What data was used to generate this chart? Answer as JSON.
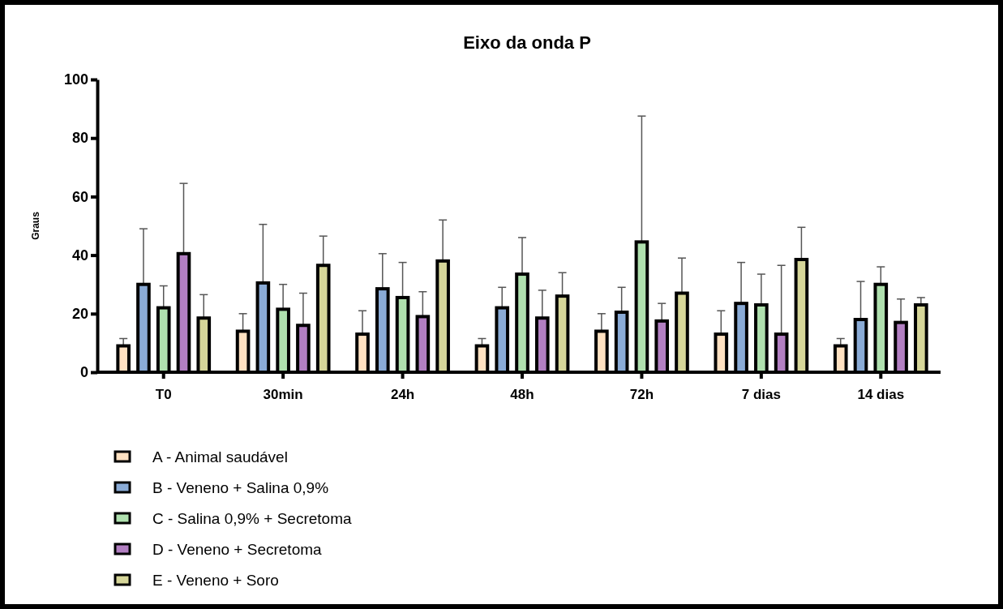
{
  "chart_data": {
    "type": "bar",
    "title": "Eixo da onda P",
    "ylabel": "Graus",
    "categories": [
      "T0",
      "30min",
      "24h",
      "48h",
      "72h",
      "7 dias",
      "14 dias"
    ],
    "ylim": [
      0,
      100
    ],
    "yticks": [
      0,
      20,
      40,
      60,
      80,
      100
    ],
    "grid": false,
    "legend": "bottom left",
    "series": [
      {
        "name": "A - Animal saudável",
        "color": "#ffe1c1",
        "values": [
          9,
          14,
          13,
          9,
          14,
          13,
          9
        ],
        "errors": [
          [
            9,
            11.5
          ],
          [
            14,
            20
          ],
          [
            13,
            21
          ],
          [
            9,
            11.5
          ],
          [
            14,
            20
          ],
          [
            13,
            21
          ],
          [
            9,
            11.5
          ]
        ]
      },
      {
        "name": "B - Veneno + Salina 0,9%",
        "color": "#8aabd6",
        "values": [
          30,
          30.5,
          28.5,
          22,
          20.5,
          23.5,
          18
        ],
        "errors": [
          [
            30,
            49
          ],
          [
            30.5,
            50.5
          ],
          [
            28.5,
            40.5
          ],
          [
            22,
            29
          ],
          [
            20.5,
            29
          ],
          [
            23.5,
            37.5
          ],
          [
            18,
            31
          ]
        ]
      },
      {
        "name": "C - Salina 0,9% + Secretoma",
        "color": "#afe0ae",
        "values": [
          22,
          21.5,
          25.5,
          33.5,
          44.5,
          23,
          30
        ],
        "errors": [
          [
            22,
            29.5
          ],
          [
            21.5,
            30
          ],
          [
            25.5,
            37.5
          ],
          [
            33.5,
            46
          ],
          [
            44.5,
            87.5
          ],
          [
            23,
            33.5
          ],
          [
            30,
            36
          ]
        ]
      },
      {
        "name": "D - Veneno + Secretoma",
        "color": "#b27fc2",
        "values": [
          40.5,
          16,
          19,
          18.5,
          17.5,
          13,
          17
        ],
        "errors": [
          [
            40.5,
            64.5
          ],
          [
            16,
            27
          ],
          [
            19,
            27.5
          ],
          [
            18.5,
            28
          ],
          [
            17.5,
            23.5
          ],
          [
            13,
            36.5
          ],
          [
            17,
            25
          ]
        ]
      },
      {
        "name": "E - Veneno + Soro",
        "color": "#d6d699",
        "values": [
          18.5,
          36.5,
          38,
          26,
          27,
          38.5,
          23
        ],
        "errors": [
          [
            18.5,
            26.5
          ],
          [
            36.5,
            46.5
          ],
          [
            38,
            52
          ],
          [
            26,
            34
          ],
          [
            27,
            39
          ],
          [
            38.5,
            49.5
          ],
          [
            23,
            25.5
          ]
        ]
      }
    ]
  }
}
